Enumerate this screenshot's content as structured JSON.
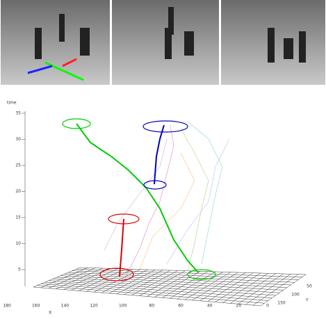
{
  "plot": {
    "z_label": "time",
    "x_label": "X",
    "y_label": "Y",
    "z_ticks": [
      5,
      10,
      15,
      20,
      25,
      30,
      35
    ],
    "x_ticks": [
      180,
      160,
      140,
      120,
      100,
      80,
      60,
      40,
      20,
      0
    ],
    "y_ticks": [
      150,
      100,
      50
    ]
  }
}
